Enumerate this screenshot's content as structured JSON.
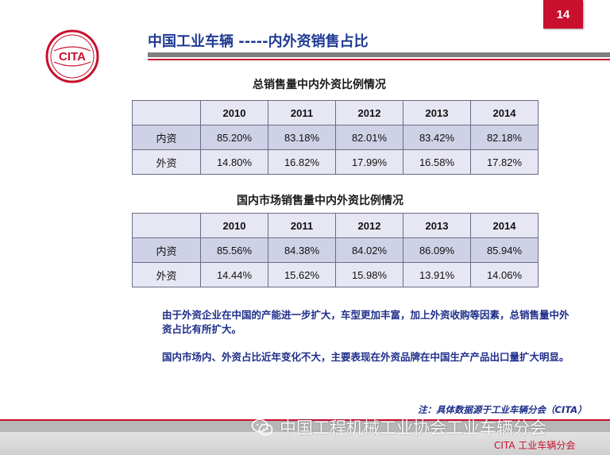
{
  "page": {
    "number": "14"
  },
  "logo": {
    "text": "CITA"
  },
  "title": "中国工业车辆 -----内外资销售占比",
  "sections": [
    {
      "caption": "总销售量中内外资比例情况",
      "table": {
        "header": [
          "",
          "2010",
          "2011",
          "2012",
          "2013",
          "2014"
        ],
        "rows": [
          {
            "label": "内资",
            "values": [
              "85.20%",
              "83.18%",
              "82.01%",
              "83.42%",
              "82.18%"
            ]
          },
          {
            "label": "外资",
            "values": [
              "14.80%",
              "16.82%",
              "17.99%",
              "16.58%",
              "17.82%"
            ]
          }
        ]
      }
    },
    {
      "caption": "国内市场销售量中内外资比例情况",
      "table": {
        "header": [
          "",
          "2010",
          "2011",
          "2012",
          "2013",
          "2014"
        ],
        "rows": [
          {
            "label": "内资",
            "values": [
              "85.56%",
              "84.38%",
              "84.02%",
              "86.09%",
              "85.94%"
            ]
          },
          {
            "label": "外资",
            "values": [
              "14.44%",
              "15.62%",
              "15.98%",
              "13.91%",
              "14.06%"
            ]
          }
        ]
      }
    }
  ],
  "notes": [
    "由于外资企业在中国的产能进一步扩大，车型更加丰富，加上外资收购等因素，总销售量中外资占比有所扩大。",
    "国内市场内、外资占比近年变化不大，主要表现在外资品牌在中国生产产品出口量扩大明显。"
  ],
  "source_note": "注：具体数据源于工业车辆分会（CITA）",
  "watermark": "中国工程机械工业协会工业车辆分会",
  "footer": "CITA 工业车辆分会",
  "colors": {
    "accent_red": "#c8102e",
    "title_blue": "#1f3a93",
    "note_blue": "#1f2f8a"
  }
}
